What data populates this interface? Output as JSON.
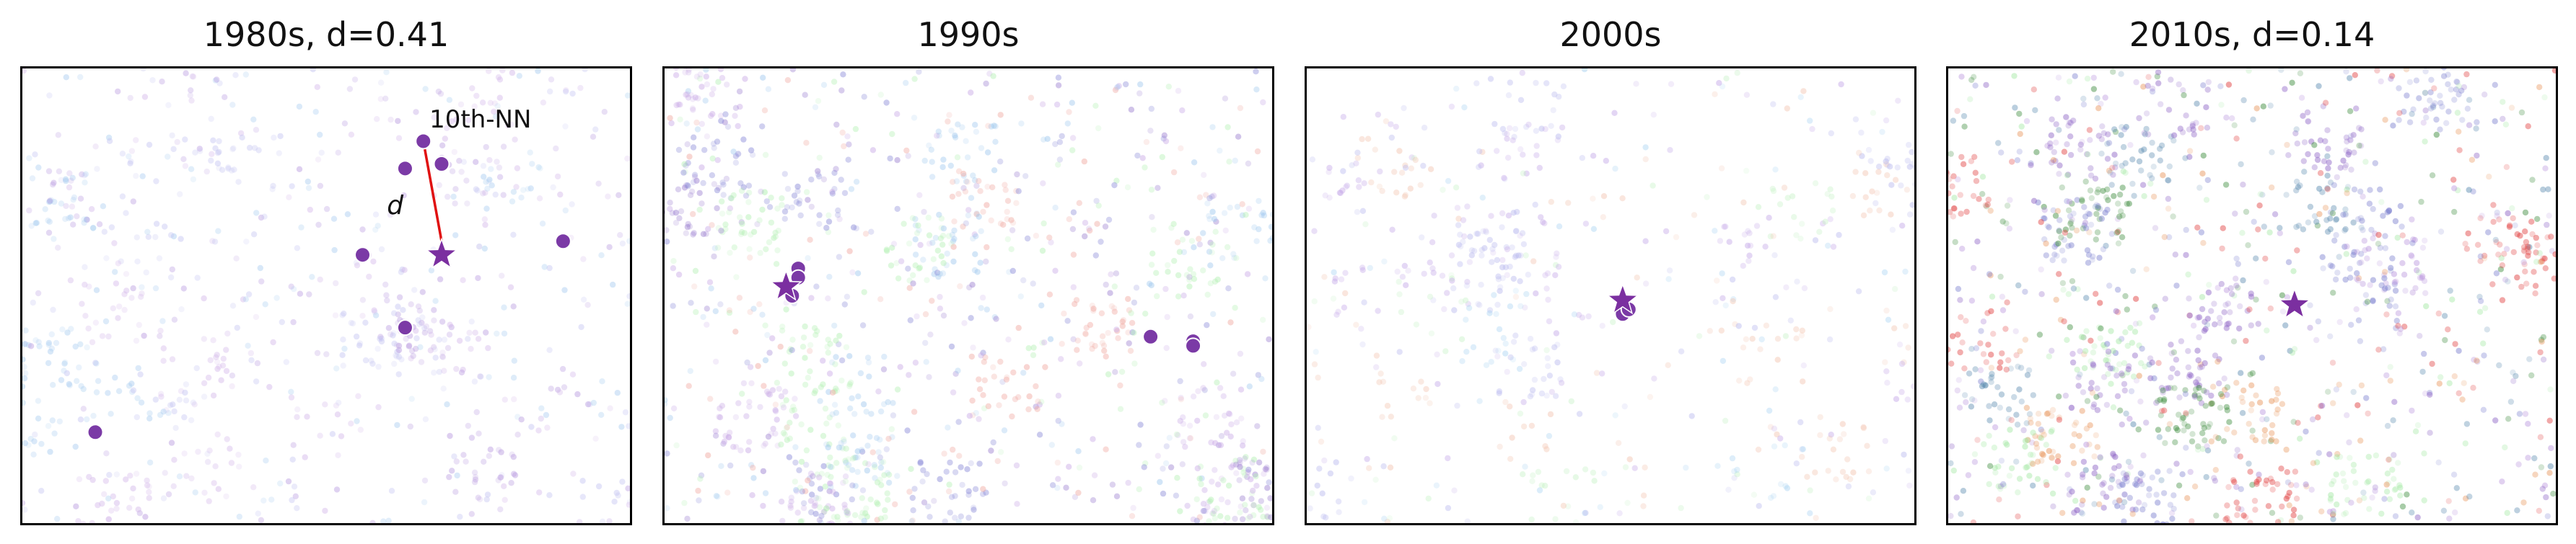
{
  "chart_data": [
    {
      "type": "scatter",
      "title": "1980s, d=0.41",
      "annotation_label": "10th-NN",
      "distance_label": "d",
      "star": {
        "x": 0.69,
        "y": 0.59,
        "color": "#7b2fa0"
      },
      "neighbors": [
        {
          "x": 0.66,
          "y": 0.84
        },
        {
          "x": 0.63,
          "y": 0.78
        },
        {
          "x": 0.69,
          "y": 0.79
        },
        {
          "x": 0.56,
          "y": 0.59
        },
        {
          "x": 0.89,
          "y": 0.62
        },
        {
          "x": 0.63,
          "y": 0.43
        },
        {
          "x": 0.12,
          "y": 0.2
        }
      ],
      "nn_line": {
        "from": [
          0.66,
          0.84
        ],
        "to": [
          0.69,
          0.62
        ],
        "color": "#e01010"
      },
      "background": {
        "seed": 11,
        "count": 900,
        "palette": [
          "#b99be0",
          "#c6c6f2",
          "#d4b8ea",
          "#a9cdf0"
        ]
      }
    },
    {
      "type": "scatter",
      "title": "1990s",
      "star": {
        "x": 0.2,
        "y": 0.52,
        "color": "#7b2fa0"
      },
      "neighbors": [
        {
          "x": 0.22,
          "y": 0.56
        },
        {
          "x": 0.22,
          "y": 0.54
        },
        {
          "x": 0.21,
          "y": 0.5
        },
        {
          "x": 0.8,
          "y": 0.41
        },
        {
          "x": 0.87,
          "y": 0.4
        },
        {
          "x": 0.87,
          "y": 0.39
        }
      ],
      "background": {
        "seed": 23,
        "count": 1400,
        "palette": [
          "#9b7fd0",
          "#8a8ad8",
          "#c9a9e6",
          "#b3f0b3",
          "#f0a8a0",
          "#9fc8ee"
        ]
      }
    },
    {
      "type": "scatter",
      "title": "2000s",
      "star": {
        "x": 0.52,
        "y": 0.49,
        "color": "#7b2fa0"
      },
      "neighbors": [
        {
          "x": 0.52,
          "y": 0.46
        },
        {
          "x": 0.53,
          "y": 0.47
        }
      ],
      "background": {
        "seed": 37,
        "count": 700,
        "palette": [
          "#c4a8e8",
          "#b9b9ee",
          "#a9d3f2",
          "#c8f2c8",
          "#f2c4b0"
        ]
      }
    },
    {
      "type": "scatter",
      "title": "2010s, d=0.14",
      "star": {
        "x": 0.57,
        "y": 0.48,
        "color": "#7b2fa0"
      },
      "neighbors": [],
      "background": {
        "seed": 53,
        "count": 1700,
        "palette": [
          "#8a5fc4",
          "#7b7fcf",
          "#5a8ab0",
          "#e8955a",
          "#e03a3a",
          "#3a8a3a",
          "#a3e8a3",
          "#b995dd"
        ]
      }
    }
  ]
}
